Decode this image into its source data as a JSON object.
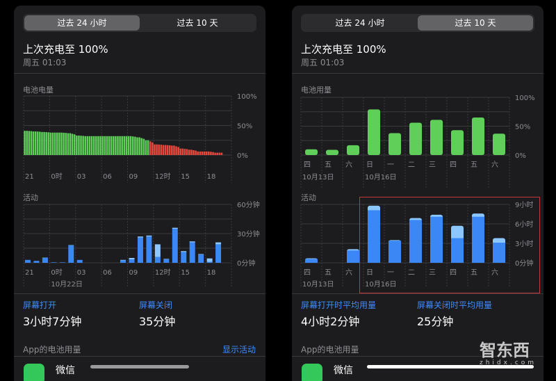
{
  "left": {
    "tabs": [
      {
        "label": "过去 24 小时",
        "selected": true
      },
      {
        "label": "过去 10 天",
        "selected": false
      }
    ],
    "title": "上次充电至 100%",
    "subtitle": "周五 01:03",
    "battery_label": "电池电量",
    "activity_label": "活动",
    "stats": [
      {
        "label": "屏幕打开",
        "value": "3小时7分钟"
      },
      {
        "label": "屏幕关闭",
        "value": "35分钟"
      }
    ],
    "app_usage_label": "App的电池用量",
    "show_activity": "显示活动",
    "app_name": "微信"
  },
  "right": {
    "tabs": [
      {
        "label": "过去 24 小时",
        "selected": false
      },
      {
        "label": "过去 10 天",
        "selected": true
      }
    ],
    "title": "上次充电至 100%",
    "subtitle": "周五 01:03",
    "battery_label": "电池用量",
    "activity_label": "活动",
    "stats": [
      {
        "label": "屏幕打开时平均用量",
        "value": "4小时2分钟"
      },
      {
        "label": "屏幕关闭时平均用量",
        "value": "25分钟"
      }
    ],
    "app_usage_label": "App的电池用量",
    "app_name": "微信"
  },
  "watermark": {
    "text": "智东西",
    "sub": "zhidx.com"
  },
  "colors": {
    "green": "#5fcf5a",
    "red": "#e5493e",
    "blue": "#3a87f5",
    "light_blue": "#8cc8ff",
    "accent": "#3d8bff"
  },
  "chart_data": [
    {
      "type": "bar",
      "title": "电池电量",
      "x_ticks": [
        "21",
        "0时",
        "03",
        "06",
        "09",
        "12时",
        "15",
        "18"
      ],
      "y_ticks": [
        "100%",
        "50%",
        "0%"
      ],
      "ylim": [
        0,
        100
      ],
      "x_hours": [
        21,
        22,
        23,
        0,
        1,
        2,
        3,
        4,
        5,
        6,
        7,
        8,
        9,
        10,
        11,
        12,
        13,
        14,
        15,
        16,
        17,
        18,
        19
      ],
      "values": [
        41,
        40,
        39,
        38,
        38,
        37,
        33,
        32,
        32,
        32,
        32,
        32,
        32,
        30,
        25,
        18,
        17,
        16,
        11,
        9,
        6,
        6,
        4
      ],
      "low_power_from_hour": 11.5
    },
    {
      "type": "stacked_bar",
      "title": "活动",
      "x_ticks": [
        "21",
        "0时",
        "03",
        "06",
        "09",
        "12时",
        "15",
        "18"
      ],
      "date_label": "10月22日",
      "y_ticks": [
        "60分钟",
        "30分钟",
        "0分钟"
      ],
      "ylim": [
        0,
        60
      ],
      "unit": "分钟",
      "x_hours": [
        21,
        22,
        23,
        0,
        1,
        2,
        3,
        8,
        9,
        10,
        11,
        12,
        13,
        14,
        15,
        16,
        17,
        18,
        19
      ],
      "series": [
        {
          "values": [
            3,
            2,
            5,
            0.5,
            0.5,
            18,
            3,
            2.5,
            3.5,
            26,
            27,
            6,
            3.5,
            35,
            11,
            21,
            8.5,
            1,
            19
          ]
        },
        {
          "values": [
            0,
            0,
            0.3,
            0,
            0,
            0.3,
            0,
            0.5,
            1.5,
            1,
            1,
            13,
            0.5,
            1,
            1,
            1,
            0.5,
            3.5,
            2
          ]
        }
      ]
    },
    {
      "type": "bar",
      "title": "电池用量",
      "categories": [
        "四",
        "五",
        "六",
        "日",
        "一",
        "二",
        "三",
        "四",
        "五",
        "六"
      ],
      "date_labels": [
        {
          "index": 0,
          "text": "10月13日"
        },
        {
          "index": 3,
          "text": "10月16日"
        }
      ],
      "y_ticks": [
        "100%",
        "50%",
        "0%"
      ],
      "ylim": [
        0,
        100
      ],
      "values": [
        10,
        9,
        17,
        79,
        38,
        56,
        61,
        43,
        65,
        37
      ]
    },
    {
      "type": "stacked_bar",
      "title": "活动",
      "categories": [
        "四",
        "五",
        "六",
        "日",
        "一",
        "二",
        "三",
        "四",
        "五",
        "六"
      ],
      "date_labels": [
        {
          "index": 0,
          "text": "10月13日"
        },
        {
          "index": 3,
          "text": "10月16日"
        }
      ],
      "y_ticks": [
        "9小时",
        "6小时",
        "3小时",
        "0分钟"
      ],
      "ylim": [
        0,
        9
      ],
      "unit": "小时",
      "series": [
        {
          "values": [
            0.6,
            0,
            1.9,
            8.1,
            3.4,
            6.6,
            7.1,
            3.8,
            7.1,
            3.1
          ]
        },
        {
          "values": [
            0.1,
            0,
            0.2,
            0.7,
            0.1,
            0.3,
            0.3,
            1.9,
            0.5,
            0.7
          ]
        }
      ]
    }
  ]
}
